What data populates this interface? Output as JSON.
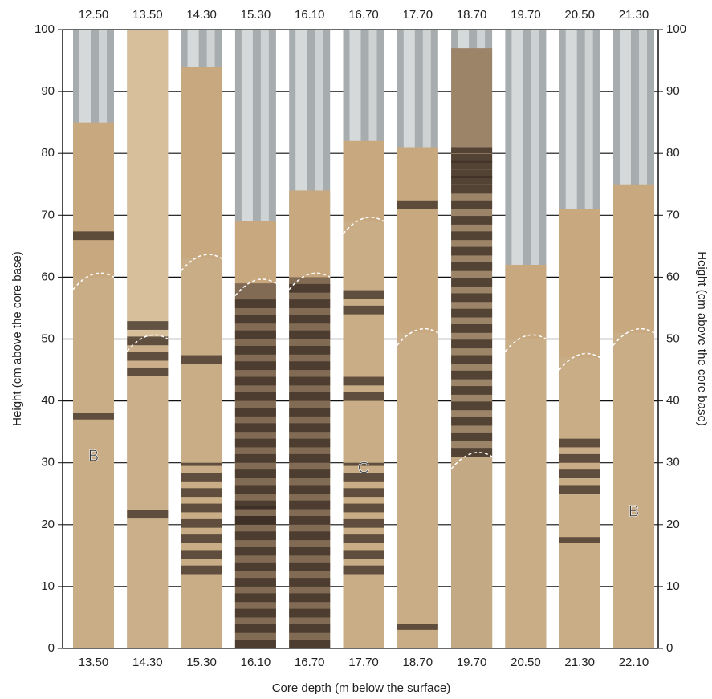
{
  "y_axis": {
    "label": "Height (cm above the core base)",
    "ylim": [
      0,
      100
    ],
    "yticks": [
      0,
      10,
      20,
      30,
      40,
      50,
      60,
      70,
      80,
      90,
      100
    ]
  },
  "x_axis": {
    "label": "Core depth (m below the surface)"
  },
  "cores": [
    {
      "top": "12.50",
      "bottom": "13.50",
      "annotation": "B"
    },
    {
      "top": "13.50",
      "bottom": "14.30"
    },
    {
      "top": "14.30",
      "bottom": "15.30"
    },
    {
      "top": "15.30",
      "bottom": "16.10"
    },
    {
      "top": "16.10",
      "bottom": "16.70"
    },
    {
      "top": "16.70",
      "bottom": "17.70",
      "annotation": "C"
    },
    {
      "top": "17.70",
      "bottom": "18.70"
    },
    {
      "top": "18.70",
      "bottom": "19.70"
    },
    {
      "top": "19.70",
      "bottom": "20.50"
    },
    {
      "top": "20.50",
      "bottom": "21.30"
    },
    {
      "top": "21.30",
      "bottom": "22.10",
      "annotation": "B"
    }
  ]
}
